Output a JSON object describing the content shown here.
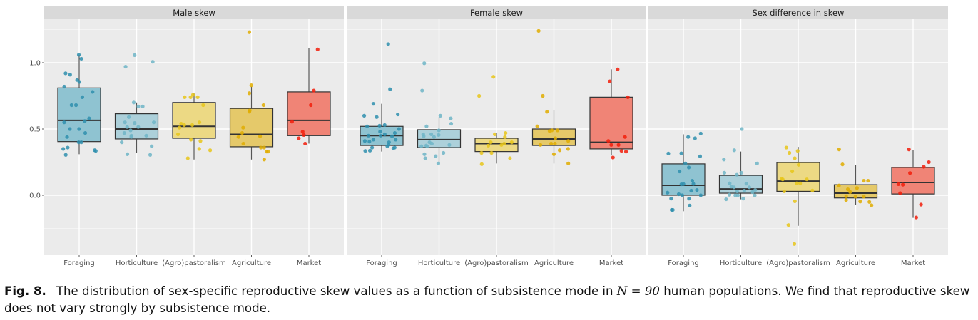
{
  "chart_data": [
    {
      "type": "box",
      "title": "Male skew",
      "categories": [
        "Foraging",
        "Horticulture",
        "(Agro)pastoralism",
        "Agriculture",
        "Market"
      ],
      "ylim": [
        -0.45,
        1.33
      ],
      "yticks": [
        {
          "value": 0.0,
          "label": "0.0"
        },
        {
          "value": 0.5,
          "label": "0.5"
        },
        {
          "value": 1.0,
          "label": "1.0"
        }
      ],
      "boxes": [
        {
          "q1": 0.405,
          "median": 0.565,
          "q3": 0.81,
          "lower": 0.31,
          "upper": 1.06
        },
        {
          "q1": 0.425,
          "median": 0.5,
          "q3": 0.615,
          "lower": 0.32,
          "upper": 0.7
        },
        {
          "q1": 0.43,
          "median": 0.52,
          "q3": 0.7,
          "lower": 0.27,
          "upper": 0.77
        },
        {
          "q1": 0.366,
          "median": 0.46,
          "q3": 0.655,
          "lower": 0.27,
          "upper": 0.82
        },
        {
          "q1": 0.45,
          "median": 0.565,
          "q3": 0.78,
          "lower": 0.39,
          "upper": 1.11
        }
      ],
      "points": [
        [
          1.06,
          1.03,
          0.92,
          0.91,
          0.87,
          0.855,
          0.82,
          0.78,
          0.74,
          0.68,
          0.68,
          0.58,
          0.56,
          0.55,
          0.5,
          0.5,
          0.47,
          0.44,
          0.4,
          0.4,
          0.36,
          0.35,
          0.34,
          0.335,
          0.305
        ],
        [
          1.057,
          1.007,
          0.97,
          0.7,
          0.67,
          0.67,
          0.59,
          0.55,
          0.55,
          0.545,
          0.515,
          0.515,
          0.49,
          0.47,
          0.45,
          0.45,
          0.44,
          0.4,
          0.37,
          0.31,
          0.305
        ],
        [
          0.758,
          0.74,
          0.74,
          0.74,
          0.68,
          0.55,
          0.54,
          0.53,
          0.53,
          0.51,
          0.46,
          0.42,
          0.41,
          0.35,
          0.34,
          0.28
        ],
        [
          1.23,
          0.83,
          0.77,
          0.68,
          0.64,
          0.63,
          0.51,
          0.47,
          0.445,
          0.44,
          0.39,
          0.36,
          0.36,
          0.33,
          0.33,
          0.27
        ],
        [
          1.1,
          0.79,
          0.68,
          0.555,
          0.48,
          0.455,
          0.43,
          0.39
        ]
      ]
    },
    {
      "type": "box",
      "title": "Female skew",
      "categories": [
        "Foraging",
        "Horticulture",
        "(Agro)pastoralism",
        "Agriculture",
        "Market"
      ],
      "ylim": [
        -0.45,
        1.33
      ],
      "boxes": [
        {
          "q1": 0.376,
          "median": 0.45,
          "q3": 0.52,
          "lower": 0.33,
          "upper": 0.69
        },
        {
          "q1": 0.36,
          "median": 0.42,
          "q3": 0.495,
          "lower": 0.24,
          "upper": 0.59
        },
        {
          "q1": 0.33,
          "median": 0.39,
          "q3": 0.43,
          "lower": 0.24,
          "upper": 0.47
        },
        {
          "q1": 0.376,
          "median": 0.425,
          "q3": 0.5,
          "lower": 0.24,
          "upper": 0.64
        },
        {
          "q1": 0.35,
          "median": 0.4,
          "q3": 0.74,
          "lower": 0.3,
          "upper": 0.95
        }
      ],
      "points": [
        [
          1.14,
          0.8,
          0.69,
          0.61,
          0.6,
          0.59,
          0.53,
          0.525,
          0.52,
          0.5,
          0.48,
          0.47,
          0.46,
          0.45,
          0.45,
          0.445,
          0.42,
          0.42,
          0.41,
          0.405,
          0.4,
          0.38,
          0.37,
          0.36,
          0.36,
          0.355,
          0.337,
          0.335
        ],
        [
          0.996,
          0.79,
          0.6,
          0.58,
          0.54,
          0.52,
          0.49,
          0.46,
          0.46,
          0.455,
          0.445,
          0.44,
          0.4,
          0.39,
          0.38,
          0.375,
          0.37,
          0.37,
          0.32,
          0.31,
          0.295,
          0.28,
          0.24
        ],
        [
          0.894,
          0.75,
          0.47,
          0.46,
          0.44,
          0.4,
          0.4,
          0.39,
          0.38,
          0.375,
          0.32,
          0.32,
          0.28,
          0.235
        ],
        [
          1.24,
          0.75,
          0.63,
          0.52,
          0.49,
          0.49,
          0.485,
          0.43,
          0.41,
          0.39,
          0.39,
          0.38,
          0.35,
          0.34,
          0.31,
          0.24
        ],
        [
          0.95,
          0.86,
          0.74,
          0.44,
          0.41,
          0.38,
          0.38,
          0.335,
          0.33,
          0.285
        ]
      ]
    },
    {
      "type": "box",
      "title": "Sex difference in skew",
      "categories": [
        "Foraging",
        "Horticulture",
        "(Agro)pastoralism",
        "Agriculture",
        "Market"
      ],
      "ylim": [
        -0.45,
        1.33
      ],
      "boxes": [
        {
          "q1": 0.0,
          "median": 0.075,
          "q3": 0.237,
          "lower": -0.12,
          "upper": 0.46
        },
        {
          "q1": 0.016,
          "median": 0.048,
          "q3": 0.15,
          "lower": -0.03,
          "upper": 0.33
        },
        {
          "q1": 0.03,
          "median": 0.107,
          "q3": 0.247,
          "lower": -0.23,
          "upper": 0.365
        },
        {
          "q1": -0.02,
          "median": 0.016,
          "q3": 0.08,
          "lower": -0.07,
          "upper": 0.23
        },
        {
          "q1": 0.01,
          "median": 0.097,
          "q3": 0.21,
          "lower": -0.17,
          "upper": 0.34
        }
      ],
      "points": [
        [
          0.466,
          0.44,
          0.43,
          0.317,
          0.315,
          0.294,
          0.24,
          0.21,
          0.18,
          0.11,
          0.086,
          0.085,
          0.083,
          0.04,
          0.035,
          0.02,
          0.008,
          0.0,
          0.0,
          -0.025,
          -0.025,
          -0.077,
          -0.11,
          -0.11
        ],
        [
          0.5,
          0.34,
          0.27,
          0.24,
          0.17,
          0.17,
          0.155,
          0.09,
          0.088,
          0.066,
          0.06,
          0.06,
          0.04,
          0.035,
          0.03,
          0.025,
          0.004,
          0.0,
          0.0,
          0.0,
          -0.025,
          -0.03
        ],
        [
          0.36,
          0.335,
          0.32,
          0.28,
          0.23,
          0.18,
          0.125,
          0.12,
          0.12,
          0.09,
          0.09,
          0.036,
          0.03,
          -0.045,
          -0.224,
          -0.367
        ],
        [
          0.346,
          0.233,
          0.11,
          0.11,
          0.074,
          0.055,
          0.045,
          0.025,
          -0.007,
          -0.01,
          -0.01,
          -0.036,
          -0.047,
          -0.05,
          -0.075
        ],
        [
          0.346,
          0.25,
          0.215,
          0.168,
          0.084,
          0.08,
          0.016,
          -0.07,
          -0.167
        ]
      ]
    }
  ],
  "colors": {
    "points": [
      "#2f8fae",
      "#6fb5c7",
      "#e8c51a",
      "#e0ad00",
      "#f21d0a"
    ],
    "boxes": [
      "#8fc3d1",
      "#acd0da",
      "#ecd984",
      "#e5c96a",
      "#f08476"
    ],
    "panel_bg": "#ebebeb",
    "strip_bg": "#d9d9d9"
  },
  "caption": {
    "label": "Fig. 8.",
    "text_before": "The distribution of sex-specific reproductive skew values as a function of subsistence mode in ",
    "math": "N = 90",
    "text_after": " human populations. We find that reproductive skew does not vary strongly by subsistence mode."
  }
}
